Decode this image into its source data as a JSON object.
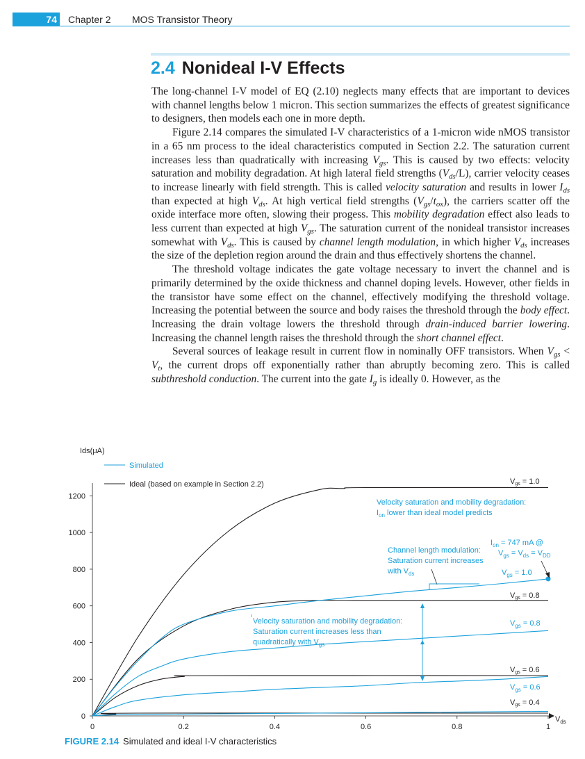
{
  "header": {
    "page_number": "74",
    "chapter": "Chapter 2",
    "chapter_title": "MOS Transistor Theory"
  },
  "section": {
    "number": "2.4",
    "title": "Nonideal I-V Effects"
  },
  "paragraphs": {
    "p1": "The long-channel I-V model of EQ (2.10) neglects many effects that are important to devices with channel lengths below 1 micron. This section summarizes the effects of greatest significance to designers, then models each one in more depth.",
    "p2_a": "Figure 2.14 compares the simulated I-V characteristics of a 1-micron wide nMOS transistor in a 65 nm process to the ideal characteristics computed in Section 2.2. The saturation current increases less than quadratically with increasing ",
    "p2_b": ". This is caused by two effects: velocity saturation and mobility degradation. At high lateral field strengths (",
    "p2_c": "/L), carrier velocity ceases to increase linearly with field strength. This is called ",
    "p2_d": "velocity saturation",
    "p2_e": " and results in lower ",
    "p2_f": " than expected at high ",
    "p2_g": ". At high vertical field strengths (",
    "p2_h": "), the carriers scatter off the oxide interface more often, slowing their progess. This ",
    "p2_i": "mobility degradation",
    "p2_j": " effect also leads to less current than expected at high ",
    "p2_k": ". The saturation current of the nonideal transistor increases somewhat with ",
    "p2_l": ". This is caused by ",
    "p2_m": "channel length modulation",
    "p2_n": ", in which higher ",
    "p2_o": " increases the size of the depletion region around the drain and thus effectively shortens the channel.",
    "p3_a": "The threshold voltage indicates the gate voltage necessary to invert the channel and is primarily determined by the oxide thickness and channel doping levels. However, other fields in the transistor have some effect on the channel, effectively modifying the threshold voltage. Increasing the potential between the source and body raises the threshold through the ",
    "p3_b": "body effect",
    "p3_c": ". Increasing the drain voltage lowers the threshold through ",
    "p3_d": "drain-induced barrier lowering",
    "p3_e": ". Increasing the channel length raises the threshold through the ",
    "p3_f": "short channel effect",
    "p3_g": ".",
    "p4_a": "Several sources of leakage result in current flow in nominally OFF transistors. When ",
    "p4_b": ", the current drops off exponentially rather than abruptly becoming zero. This is called ",
    "p4_c": "subthreshold conduction",
    "p4_d": ". The current into the gate ",
    "p4_e": " is ideally 0.  However, as the"
  },
  "symbols": {
    "V": "V",
    "I": "I",
    "gs": "gs",
    "ds": "ds",
    "g": "g",
    "t": "t",
    "ox": "ox",
    "lt": " < ",
    "slash": "/"
  },
  "chart_data": {
    "type": "line",
    "ylabel": "Ids(μA)",
    "xlabel": "Vds",
    "xlim": [
      0,
      1
    ],
    "ylim": [
      0,
      1300
    ],
    "x_ticks": [
      "0",
      "0.2",
      "0.4",
      "0.6",
      "0.8",
      "1"
    ],
    "y_ticks": [
      "0",
      "200",
      "400",
      "600",
      "800",
      "1000",
      "1200"
    ],
    "legend": [
      "Simulated",
      "Ideal (based on example in Section 2.2)"
    ],
    "colors": {
      "simulated": "#1ba1dc",
      "ideal": "#231f20"
    },
    "series": [
      {
        "name": "Ideal",
        "label": "Vgs = 1.0",
        "x": [
          0,
          0.1,
          0.2,
          0.3,
          0.4,
          0.5,
          0.55,
          0.6,
          1.0
        ],
        "values": [
          0,
          430,
          770,
          1010,
          1160,
          1235,
          1240,
          1245,
          1245
        ]
      },
      {
        "name": "Ideal",
        "label": "Vgs = 0.8",
        "x": [
          0,
          0.1,
          0.2,
          0.3,
          0.4,
          0.5,
          0.6,
          1.0
        ],
        "values": [
          0,
          310,
          490,
          580,
          620,
          630,
          630,
          630
        ]
      },
      {
        "name": "Ideal",
        "label": "Vgs = 0.6",
        "x": [
          0,
          0.05,
          0.1,
          0.15,
          0.2,
          0.25,
          1.0
        ],
        "values": [
          0,
          100,
          165,
          200,
          215,
          220,
          220
        ]
      },
      {
        "name": "Ideal",
        "label": "Vgs = 0.4",
        "x": [
          0,
          0.05,
          0.1,
          1.0
        ],
        "values": [
          0,
          10,
          15,
          15
        ]
      },
      {
        "name": "Simulated",
        "label": "Vgs = 1.0",
        "x": [
          0,
          0.05,
          0.1,
          0.15,
          0.2,
          0.3,
          0.4,
          0.5,
          0.6,
          0.7,
          0.8,
          0.9,
          1.0
        ],
        "values": [
          0,
          160,
          300,
          420,
          500,
          570,
          600,
          630,
          655,
          680,
          700,
          722,
          747
        ]
      },
      {
        "name": "Simulated",
        "label": "Vgs = 0.8",
        "x": [
          0,
          0.05,
          0.1,
          0.15,
          0.2,
          0.3,
          0.4,
          0.5,
          0.6,
          0.7,
          0.8,
          0.9,
          1.0
        ],
        "values": [
          0,
          120,
          215,
          270,
          310,
          350,
          370,
          390,
          405,
          420,
          435,
          450,
          465
        ]
      },
      {
        "name": "Simulated",
        "label": "Vgs = 0.6",
        "x": [
          0,
          0.05,
          0.1,
          0.2,
          0.3,
          0.4,
          0.5,
          0.6,
          0.7,
          0.8,
          0.9,
          1.0
        ],
        "values": [
          0,
          50,
          85,
          115,
          130,
          145,
          155,
          165,
          180,
          190,
          200,
          215
        ]
      },
      {
        "name": "Simulated",
        "label": "Vgs = 0.4",
        "x": [
          0,
          0.1,
          0.5,
          1.0
        ],
        "values": [
          0,
          8,
          15,
          25
        ]
      }
    ],
    "annotations": {
      "velocity_top_1": "Velocity saturation and mobility degradation:",
      "velocity_top_2": "I",
      "velocity_top_2_sub": "on",
      "velocity_top_3": " lower than ideal model predicts",
      "clm_1": "Channel length modulation:",
      "clm_2": "Saturation current increases",
      "clm_3": "with V",
      "clm_3_sub": "ds",
      "ion_1": "I",
      "ion_1_sub": "on",
      "ion_1_rest": " = 747 mA @",
      "ion_2": "V",
      "ion_2_sub1": "gs",
      "ion_2_mid": " = V",
      "ion_2_sub2": "ds",
      "ion_2_mid2": " = V",
      "ion_2_sub3": "DD",
      "vel_mid_1": "Velocity saturation and mobility degradation:",
      "vel_mid_2": "Saturation current increases less than",
      "vel_mid_3": "quadratically with V",
      "vel_mid_3_sub": "gs"
    },
    "curve_labels": {
      "ideal_10": "Vgs = 1.0",
      "ideal_08": "Vgs = 0.8",
      "ideal_06": "Vgs = 0.6",
      "ideal_04": "Vgs = 0.4",
      "sim_10": "Vgs = 1.0",
      "sim_08": "Vgs = 0.8",
      "sim_06": "Vgs = 0.6"
    }
  },
  "figure": {
    "label": "FIGURE 2.14",
    "caption": "Simulated and ideal I-V characteristics"
  }
}
